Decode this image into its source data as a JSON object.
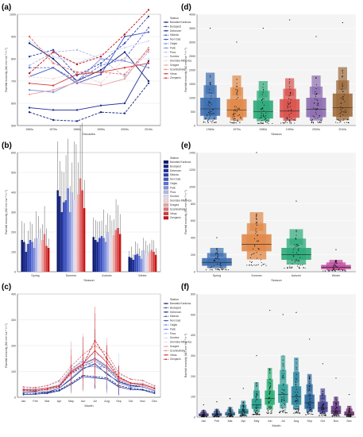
{
  "stations": [
    "Banatski Karlovac",
    "Budapest",
    "Debrecen",
    "Kikinda",
    "Novi Sad",
    "Osijek",
    "Palic",
    "Pecs",
    "Sombor",
    "Sremska Mitrovica",
    "Szeged",
    "Szombathely",
    "Vrbas",
    "Zrenjanin"
  ],
  "station_colors": [
    "#0b1a6e",
    "#14237e",
    "#1d2d95",
    "#2a3fb0",
    "#3d55c4",
    "#5c70d0",
    "#8290dc",
    "#aeb6e8",
    "#d7dbf2",
    "#f4d2d2",
    "#eba2a2",
    "#e06f6f",
    "#d63a3a",
    "#c81414"
  ],
  "season_colors": [
    "#3d6fb0",
    "#e08a4a",
    "#2eaa7a",
    "#d9534f",
    "#8e6fb0",
    "#9c6a3c"
  ],
  "month_colors": [
    "#4a3f8a",
    "#3f5c98",
    "#34749c",
    "#2f8a9b",
    "#2a9e8f",
    "#2faf78",
    "#3aa39c",
    "#2f8aa0",
    "#2c6aa0",
    "#4a4a98",
    "#6a3f8a",
    "#7a3c7c"
  ],
  "chart_data": [
    {
      "panel": "(a)",
      "type": "line",
      "xlabel": "Decades",
      "ylabel": "Rainfall erosivity (MJ mm ha⁻¹ h⁻¹)",
      "ylim": [
        500,
        1000
      ],
      "yticks": [
        500,
        600,
        700,
        800,
        900,
        1000
      ],
      "categories": [
        "1960s",
        "1970s",
        "1980s",
        "1990s",
        "2000s",
        "2010s"
      ],
      "legend_title": "Station",
      "series": [
        {
          "name": "Banatski Karlovac",
          "values": [
            870,
            800,
            700,
            750,
            830,
            700
          ]
        },
        {
          "name": "Budapest",
          "values": [
            560,
            525,
            520,
            560,
            555,
            690
          ]
        },
        {
          "name": "Debrecen",
          "values": [
            580,
            570,
            570,
            590,
            600,
            790
          ]
        },
        {
          "name": "Kikinda",
          "values": [
            810,
            840,
            725,
            780,
            870,
            990
          ]
        },
        {
          "name": "Novi Sad",
          "values": [
            720,
            760,
            690,
            730,
            900,
            920
          ]
        },
        {
          "name": "Osijek",
          "values": [
            760,
            760,
            700,
            770,
            800,
            940
          ]
        },
        {
          "name": "Palic",
          "values": [
            660,
            650,
            700,
            800,
            790,
            760
          ]
        },
        {
          "name": "Pecs",
          "values": [
            770,
            830,
            840,
            800,
            720,
            830
          ]
        },
        {
          "name": "Sombor",
          "values": [
            880,
            810,
            780,
            820,
            850,
            880
          ]
        },
        {
          "name": "Sremska Mitrovica",
          "values": [
            720,
            710,
            740,
            690,
            800,
            800
          ]
        },
        {
          "name": "Szeged",
          "values": [
            640,
            660,
            695,
            680,
            710,
            850
          ]
        },
        {
          "name": "Szombathely",
          "values": [
            900,
            780,
            740,
            740,
            730,
            840
          ]
        },
        {
          "name": "Vrbas",
          "values": [
            690,
            680,
            730,
            740,
            760,
            780
          ]
        },
        {
          "name": "Zrenjanin",
          "values": [
            735,
            830,
            775,
            810,
            910,
            1020
          ]
        }
      ]
    },
    {
      "panel": "(b)",
      "type": "bar",
      "xlabel": "Season",
      "ylabel": "Rainfall erosivity (MJ mm ha⁻¹ h⁻¹)",
      "ylim": [
        0,
        600
      ],
      "yticks": [
        0,
        100,
        200,
        300,
        400,
        500,
        600
      ],
      "categories": [
        "Spring",
        "Summer",
        "Autumn",
        "Winter"
      ],
      "legend_title": "Station",
      "series_names_ref": "stations",
      "values": [
        [
          160,
          150,
          100,
          140,
          160,
          150,
          120,
          170,
          170,
          140,
          160,
          190,
          130,
          120
        ],
        [
          410,
          380,
          300,
          350,
          360,
          420,
          300,
          400,
          360,
          350,
          390,
          470,
          410,
          320
        ],
        [
          175,
          160,
          150,
          170,
          180,
          170,
          150,
          200,
          175,
          170,
          185,
          210,
          220,
          190
        ],
        [
          75,
          70,
          60,
          85,
          90,
          80,
          65,
          110,
          90,
          80,
          100,
          110,
          100,
          85
        ]
      ]
    },
    {
      "panel": "(c)",
      "type": "line",
      "xlabel": "Month",
      "ylabel": "Rainfall erosivity (MJ mm ha⁻¹ h⁻¹)",
      "ylim": [
        0,
        400
      ],
      "yticks": [
        0,
        100,
        200,
        300,
        400
      ],
      "categories": [
        "Jan",
        "Feb",
        "Mar",
        "Apr",
        "May",
        "Jun",
        "Jul",
        "Aug",
        "Sep",
        "Oct",
        "Nov",
        "Dec"
      ],
      "legend_title": "Station",
      "series_names_ref": "stations",
      "series_values": [
        [
          20,
          22,
          18,
          35,
          70,
          110,
          130,
          90,
          60,
          45,
          40,
          25
        ],
        [
          15,
          15,
          18,
          28,
          55,
          85,
          80,
          75,
          45,
          35,
          30,
          20
        ],
        [
          10,
          12,
          15,
          25,
          50,
          80,
          75,
          70,
          40,
          30,
          28,
          15
        ],
        [
          25,
          25,
          30,
          40,
          90,
          120,
          140,
          110,
          65,
          45,
          45,
          30
        ],
        [
          30,
          28,
          35,
          45,
          100,
          130,
          150,
          120,
          70,
          50,
          50,
          35
        ],
        [
          35,
          30,
          35,
          50,
          110,
          140,
          120,
          115,
          80,
          55,
          55,
          40
        ],
        [
          20,
          20,
          22,
          35,
          75,
          115,
          120,
          95,
          55,
          40,
          40,
          25
        ],
        [
          40,
          35,
          45,
          60,
          100,
          150,
          170,
          150,
          90,
          70,
          65,
          45
        ],
        [
          30,
          28,
          30,
          45,
          95,
          125,
          140,
          115,
          70,
          50,
          50,
          35
        ],
        [
          35,
          32,
          38,
          50,
          105,
          135,
          155,
          125,
          80,
          55,
          55,
          40
        ],
        [
          25,
          25,
          28,
          42,
          90,
          130,
          145,
          115,
          70,
          50,
          45,
          30
        ],
        [
          40,
          38,
          45,
          65,
          120,
          165,
          200,
          170,
          95,
          70,
          65,
          45
        ],
        [
          30,
          30,
          35,
          45,
          100,
          130,
          180,
          135,
          75,
          55,
          50,
          35
        ],
        [
          28,
          25,
          30,
          42,
          95,
          125,
          220,
          150,
          80,
          55,
          50,
          35
        ]
      ]
    },
    {
      "panel": "(d)",
      "type": "box",
      "xlabel": "Season",
      "ylabel": "Rainfall erosivity (MJ mm ha⁻¹ h⁻¹)",
      "ylim": [
        0,
        4000
      ],
      "yticks": [
        0,
        500,
        1000,
        1500,
        2000,
        2500,
        3000,
        3500,
        4000
      ],
      "categories": [
        "1960s",
        "1970s",
        "1980s",
        "1990s",
        "2000s",
        "2010s"
      ],
      "boxes": [
        {
          "q1": 350,
          "median": 600,
          "q3": 1000,
          "whisker_high": 1900,
          "max": 3500
        },
        {
          "q1": 300,
          "median": 550,
          "q3": 950,
          "whisker_high": 1800,
          "max": 3000
        },
        {
          "q1": 250,
          "median": 500,
          "q3": 900,
          "whisker_high": 1600,
          "max": 3500
        },
        {
          "q1": 280,
          "median": 520,
          "q3": 950,
          "whisker_high": 1700,
          "max": 3800
        },
        {
          "q1": 300,
          "median": 580,
          "q3": 1000,
          "whisker_high": 1800,
          "max": 3200
        },
        {
          "q1": 320,
          "median": 650,
          "q3": 1150,
          "whisker_high": 2100,
          "max": 3700
        }
      ]
    },
    {
      "panel": "(e)",
      "type": "box",
      "xlabel": "Season",
      "ylabel": "Rainfall erosivity (MJ mm ha⁻¹ h⁻¹)",
      "ylim": [
        0,
        1400
      ],
      "yticks": [
        0,
        200,
        400,
        600,
        800,
        1000,
        1200,
        1400
      ],
      "categories": [
        "Spring",
        "Summer",
        "Autumn",
        "Winter"
      ],
      "boxes": [
        {
          "q1": 70,
          "median": 110,
          "q3": 160,
          "whisker_high": 280,
          "max": 400
        },
        {
          "q1": 240,
          "median": 320,
          "q3": 440,
          "whisker_high": 700,
          "max": 1400
        },
        {
          "q1": 140,
          "median": 200,
          "q3": 280,
          "whisker_high": 500,
          "max": 830
        },
        {
          "q1": 30,
          "median": 50,
          "q3": 80,
          "whisker_high": 140,
          "max": 260
        }
      ]
    },
    {
      "panel": "(f)",
      "type": "box",
      "xlabel": "Month",
      "ylabel": "Rainfall erosivity (MJ mm ha⁻¹ h⁻¹)",
      "ylim": [
        0,
        600
      ],
      "yticks": [
        0,
        100,
        200,
        300,
        400,
        500,
        600
      ],
      "categories": [
        "Jan",
        "Feb",
        "Mar",
        "Apr",
        "May",
        "Jun",
        "Jul",
        "Aug",
        "Sep",
        "Oct",
        "Nov",
        "Dec"
      ],
      "boxes": [
        {
          "q1": 5,
          "median": 10,
          "q3": 18,
          "whisker_high": 35,
          "max": 60
        },
        {
          "q1": 5,
          "median": 12,
          "q3": 20,
          "whisker_high": 40,
          "max": 75
        },
        {
          "q1": 8,
          "median": 15,
          "q3": 25,
          "whisker_high": 50,
          "max": 90
        },
        {
          "q1": 15,
          "median": 25,
          "q3": 40,
          "whisker_high": 80,
          "max": 140
        },
        {
          "q1": 40,
          "median": 60,
          "q3": 90,
          "whisker_high": 170,
          "max": 300
        },
        {
          "q1": 60,
          "median": 90,
          "q3": 130,
          "whisker_high": 240,
          "max": 520
        },
        {
          "q1": 70,
          "median": 110,
          "q3": 160,
          "whisker_high": 300,
          "max": 500
        },
        {
          "q1": 60,
          "median": 100,
          "q3": 150,
          "whisker_high": 290,
          "max": 510
        },
        {
          "q1": 40,
          "median": 70,
          "q3": 110,
          "whisker_high": 210,
          "max": 380
        },
        {
          "q1": 25,
          "median": 45,
          "q3": 75,
          "whisker_high": 140,
          "max": 260
        },
        {
          "q1": 15,
          "median": 30,
          "q3": 55,
          "whisker_high": 100,
          "max": 190
        },
        {
          "q1": 8,
          "median": 15,
          "q3": 28,
          "whisker_high": 55,
          "max": 110
        }
      ]
    }
  ]
}
